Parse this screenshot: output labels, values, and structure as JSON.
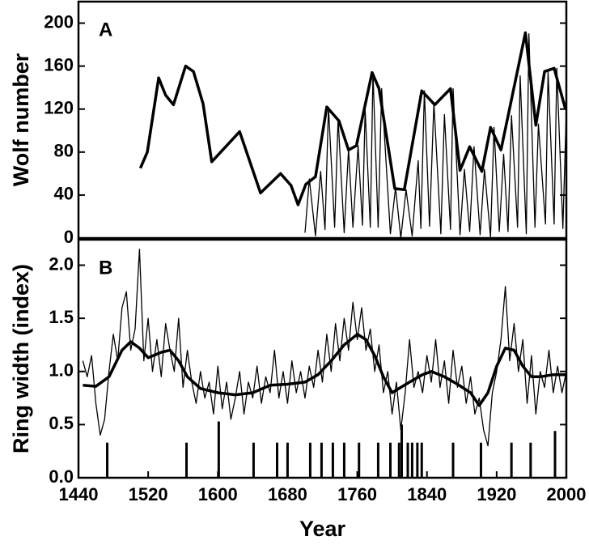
{
  "chart_data": [
    {
      "type": "line",
      "panel_label": "A",
      "ylabel": "Wolf number",
      "xlim": [
        1440,
        2000
      ],
      "ylim": [
        0,
        220
      ],
      "yticks": [
        0,
        40,
        80,
        120,
        160,
        200
      ],
      "series": [
        {
          "color": "#000000",
          "line_width": 1.3,
          "x": [
            1700,
            1705,
            1712,
            1718,
            1723,
            1727,
            1734,
            1738,
            1745,
            1750,
            1755,
            1761,
            1766,
            1769,
            1775,
            1778,
            1784,
            1788,
            1798,
            1804,
            1810,
            1816,
            1823,
            1830,
            1833,
            1837,
            1843,
            1848,
            1856,
            1860,
            1867,
            1870,
            1878,
            1883,
            1889,
            1894,
            1901,
            1906,
            1913,
            1917,
            1923,
            1928,
            1933,
            1937,
            1944,
            1947,
            1954,
            1957,
            1964,
            1968,
            1976,
            1979,
            1986,
            1989,
            1996,
            2000
          ],
          "values": [
            5,
            55,
            2,
            62,
            8,
            122,
            10,
            111,
            5,
            83,
            10,
            86,
            12,
            120,
            10,
            154,
            10,
            139,
            4,
            47,
            0,
            45,
            2,
            72,
            9,
            137,
            11,
            126,
            4,
            115,
            8,
            139,
            3,
            64,
            6,
            85,
            3,
            64,
            1,
            103,
            6,
            78,
            6,
            114,
            10,
            151,
            4,
            190,
            10,
            106,
            13,
            155,
            13,
            158,
            9,
            120
          ]
        },
        {
          "color": "#000000",
          "line_width": 3.5,
          "x": [
            1511,
            1519,
            1532,
            1540,
            1549,
            1563,
            1572,
            1583,
            1593,
            1625,
            1649,
            1672,
            1684,
            1692,
            1701,
            1712,
            1725,
            1739,
            1750,
            1759,
            1777,
            1785,
            1803,
            1814,
            1834,
            1849,
            1867,
            1878,
            1889,
            1903,
            1913,
            1925,
            1953,
            1965,
            1975,
            1986,
            1999
          ],
          "values": [
            65,
            80,
            149,
            133,
            124,
            160,
            155,
            125,
            71,
            99,
            42,
            60,
            49,
            31,
            50,
            57,
            122,
            109,
            82,
            86,
            154,
            139,
            46,
            45,
            137,
            124,
            139,
            63,
            85,
            62,
            103,
            82,
            191,
            105,
            155,
            158,
            120
          ]
        }
      ]
    },
    {
      "type": "line",
      "panel_label": "B",
      "ylabel": "Ring width (index)",
      "xlabel": "Year",
      "xlim": [
        1440,
        2000
      ],
      "xticks": [
        1440,
        1520,
        1600,
        1680,
        1760,
        1840,
        1920,
        2000
      ],
      "ylim": [
        0,
        2.24
      ],
      "yticks": [
        {
          "value": 0,
          "label": "0.0"
        },
        0.5,
        {
          "value": 1,
          "label": "1.0"
        },
        1.5,
        {
          "value": 2,
          "label": "2.0"
        }
      ],
      "series": [
        {
          "color": "#000000",
          "line_width": 1.3,
          "x": [
            1445,
            1450,
            1455,
            1460,
            1465,
            1470,
            1475,
            1480,
            1485,
            1490,
            1495,
            1500,
            1505,
            1510,
            1515,
            1520,
            1525,
            1530,
            1535,
            1540,
            1545,
            1550,
            1555,
            1560,
            1565,
            1570,
            1575,
            1580,
            1585,
            1590,
            1595,
            1600,
            1605,
            1610,
            1615,
            1620,
            1625,
            1630,
            1635,
            1640,
            1645,
            1650,
            1655,
            1660,
            1665,
            1670,
            1675,
            1680,
            1685,
            1690,
            1695,
            1700,
            1705,
            1710,
            1715,
            1720,
            1725,
            1730,
            1735,
            1740,
            1745,
            1750,
            1755,
            1760,
            1765,
            1770,
            1775,
            1780,
            1785,
            1790,
            1795,
            1800,
            1805,
            1810,
            1815,
            1820,
            1825,
            1830,
            1835,
            1840,
            1845,
            1850,
            1855,
            1860,
            1865,
            1870,
            1875,
            1880,
            1885,
            1890,
            1895,
            1900,
            1905,
            1910,
            1915,
            1920,
            1925,
            1930,
            1935,
            1940,
            1945,
            1950,
            1955,
            1960,
            1965,
            1970,
            1975,
            1980,
            1985,
            1990,
            1995,
            2000
          ],
          "values": [
            1.1,
            0.95,
            1.15,
            0.7,
            0.4,
            0.55,
            1.0,
            1.35,
            1.1,
            1.6,
            1.75,
            1.2,
            1.4,
            2.15,
            1.1,
            1.5,
            1.0,
            1.3,
            0.95,
            1.45,
            1.2,
            1.0,
            1.5,
            0.85,
            1.2,
            0.9,
            0.7,
            1.0,
            0.75,
            0.9,
            0.6,
            1.05,
            0.65,
            0.9,
            0.55,
            0.75,
            1.0,
            0.6,
            0.9,
            0.75,
            1.05,
            0.7,
            0.95,
            0.8,
            1.2,
            0.75,
            1.0,
            0.7,
            1.1,
            0.8,
            1.0,
            0.75,
            1.05,
            0.85,
            1.2,
            0.9,
            1.35,
            1.0,
            1.45,
            1.1,
            1.5,
            1.2,
            1.65,
            1.3,
            1.6,
            1.2,
            1.4,
            1.0,
            1.25,
            0.8,
            1.0,
            0.6,
            0.9,
            0.45,
            0.8,
            1.3,
            0.85,
            1.0,
            0.8,
            1.15,
            0.9,
            1.3,
            0.85,
            1.1,
            0.7,
            1.2,
            0.85,
            1.05,
            0.7,
            0.95,
            0.6,
            0.75,
            0.45,
            0.3,
            0.8,
            1.0,
            1.3,
            1.8,
            1.1,
            1.45,
            1.0,
            1.3,
            0.7,
            1.15,
            0.6,
            1.0,
            0.85,
            1.2,
            0.8,
            1.05,
            0.8,
            1.0
          ]
        },
        {
          "color": "#000000",
          "line_width": 3.5,
          "x": [
            1445,
            1460,
            1475,
            1490,
            1500,
            1510,
            1520,
            1535,
            1545,
            1555,
            1565,
            1580,
            1600,
            1620,
            1640,
            1660,
            1680,
            1700,
            1715,
            1730,
            1745,
            1760,
            1770,
            1780,
            1790,
            1800,
            1810,
            1820,
            1835,
            1845,
            1860,
            1875,
            1890,
            1900,
            1910,
            1920,
            1930,
            1940,
            1950,
            1960,
            1970,
            1985,
            2000
          ],
          "values": [
            0.87,
            0.86,
            0.95,
            1.2,
            1.28,
            1.22,
            1.13,
            1.18,
            1.2,
            1.1,
            0.95,
            0.84,
            0.8,
            0.78,
            0.8,
            0.87,
            0.88,
            0.9,
            0.97,
            1.1,
            1.25,
            1.35,
            1.3,
            1.15,
            0.95,
            0.8,
            0.85,
            0.9,
            0.97,
            1.0,
            0.95,
            0.88,
            0.8,
            0.68,
            0.8,
            1.05,
            1.22,
            1.2,
            1.05,
            0.95,
            0.95,
            0.97,
            0.97
          ]
        },
        {
          "type": "bar",
          "color": "#000000",
          "line_width": 3,
          "x": [
            1473,
            1564,
            1601,
            1641,
            1668,
            1680,
            1706,
            1719,
            1732,
            1745,
            1762,
            1784,
            1798,
            1808,
            1811,
            1818,
            1823,
            1829,
            1834,
            1870,
            1902,
            1937,
            1959,
            1987
          ],
          "values": [
            0.33,
            0.33,
            0.53,
            0.33,
            0.33,
            0.33,
            0.33,
            0.33,
            0.33,
            0.33,
            0.33,
            0.33,
            0.33,
            0.33,
            0.5,
            0.33,
            0.33,
            0.33,
            0.33,
            0.33,
            0.33,
            0.33,
            0.33,
            0.44
          ]
        }
      ]
    }
  ]
}
